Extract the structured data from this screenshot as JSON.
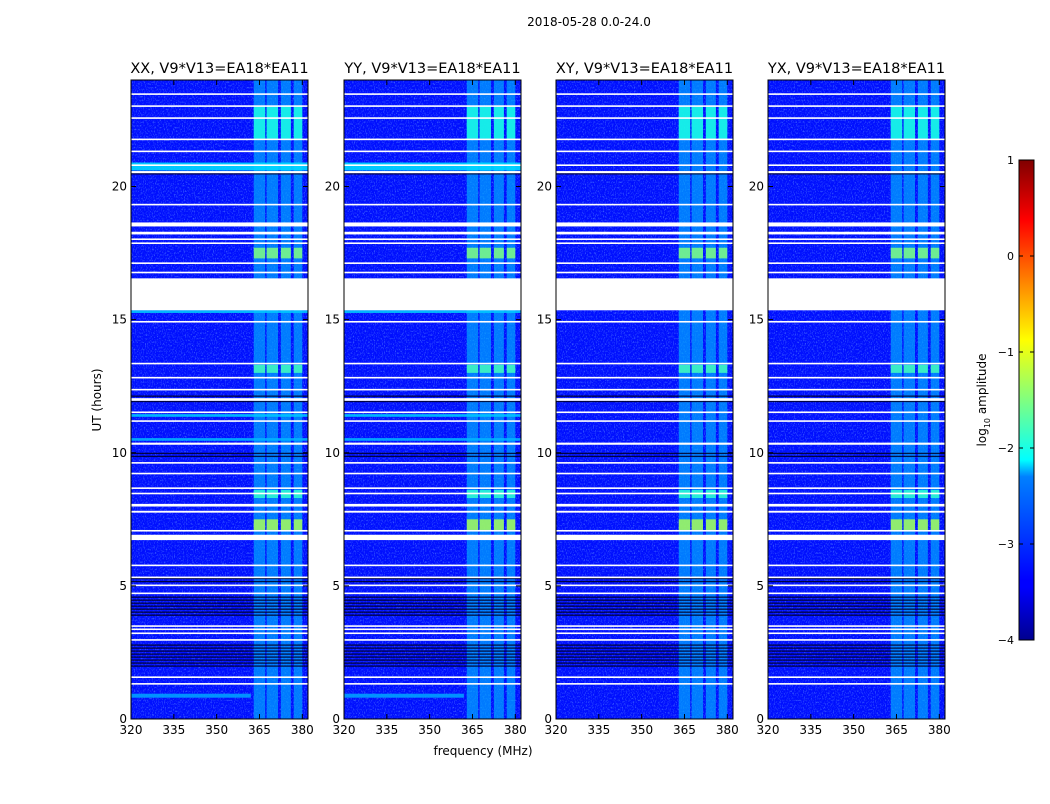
{
  "chart_data": {
    "type": "heatmap",
    "suptitle": "2018-05-28 0.0-24.0",
    "xlabel": "frequency (MHz)",
    "ylabel": "UT (hours)",
    "xlim": [
      320,
      382
    ],
    "ylim": [
      0,
      24
    ],
    "xticks": [
      320,
      335,
      350,
      365,
      380
    ],
    "yticks": [
      0,
      5,
      10,
      15,
      20
    ],
    "colormap": "jet",
    "colorbar": {
      "label": "log10 amplitude",
      "label_base": "log",
      "label_sub": "10",
      "label_rest": " amplitude",
      "range": [
        -4,
        1
      ],
      "ticks": [
        {
          "value": 1,
          "label": "1"
        },
        {
          "value": 0,
          "label": "0"
        },
        {
          "value": -1,
          "label": "−1"
        },
        {
          "value": -2,
          "label": "−2"
        },
        {
          "value": -3,
          "label": "−3"
        },
        {
          "value": -4,
          "label": "−4"
        }
      ]
    },
    "panels": [
      {
        "title": "XX, V9*V13=EA18*EA11",
        "polarization": "XX"
      },
      {
        "title": "YY, V9*V13=EA18*EA11",
        "polarization": "YY"
      },
      {
        "title": "XY, V9*V13=EA18*EA11",
        "polarization": "XY"
      },
      {
        "title": "YX, V9*V13=EA18*EA11",
        "polarization": "YX"
      }
    ],
    "background_log_amp": -3.3,
    "rfi_bands_mhz": [
      [
        363,
        367
      ],
      [
        367.5,
        371.5
      ],
      [
        372.5,
        376
      ],
      [
        377,
        380
      ]
    ],
    "flagged_ut_ranges": [
      [
        1.3,
        1.35
      ],
      [
        1.55,
        1.6
      ],
      [
        2.95,
        3.0
      ],
      [
        3.2,
        3.25
      ],
      [
        3.35,
        3.4
      ],
      [
        3.48,
        3.52
      ],
      [
        4.7,
        4.75
      ],
      [
        5.0,
        5.05
      ],
      [
        5.3,
        5.35
      ],
      [
        5.75,
        5.8
      ],
      [
        6.72,
        6.92
      ],
      [
        7.07,
        7.1
      ],
      [
        7.75,
        7.82
      ],
      [
        7.98,
        8.08
      ],
      [
        8.45,
        8.5
      ],
      [
        8.65,
        8.7
      ],
      [
        9.2,
        9.25
      ],
      [
        9.6,
        9.65
      ],
      [
        10.3,
        10.38
      ],
      [
        11.18,
        11.22
      ],
      [
        11.5,
        11.55
      ],
      [
        11.95,
        12.05
      ],
      [
        12.35,
        12.4
      ],
      [
        12.8,
        12.85
      ],
      [
        13.32,
        13.38
      ],
      [
        14.9,
        14.95
      ],
      [
        15.35,
        16.55
      ],
      [
        16.75,
        16.8
      ],
      [
        17.1,
        17.15
      ],
      [
        17.85,
        17.9
      ],
      [
        18.0,
        18.05
      ],
      [
        18.2,
        18.3
      ],
      [
        18.5,
        18.65
      ],
      [
        19.3,
        19.35
      ],
      [
        20.5,
        20.58
      ],
      [
        20.78,
        20.83
      ],
      [
        21.3,
        21.35
      ],
      [
        21.75,
        21.8
      ],
      [
        22.55,
        22.6
      ],
      [
        23.0,
        23.05
      ],
      [
        23.45,
        23.5
      ]
    ],
    "dark_ut_ranges": [
      [
        1.9,
        2.8
      ],
      [
        3.9,
        4.6
      ],
      [
        5.1,
        5.3
      ],
      [
        9.85,
        10.0
      ],
      [
        11.85,
        11.95
      ],
      [
        12.05,
        12.15
      ],
      [
        20.43,
        20.5
      ]
    ],
    "bright_features": [
      {
        "ut": [
          20.6,
          20.9
        ],
        "mhz": [
          320,
          382
        ],
        "log_amp": -2.3,
        "panels": [
          "XX",
          "YY"
        ]
      },
      {
        "ut": [
          15.25,
          15.35
        ],
        "mhz": [
          320,
          382
        ],
        "log_amp": -2.4,
        "panels": [
          "XX",
          "YY"
        ]
      },
      {
        "ut": [
          0.8,
          0.95
        ],
        "mhz": [
          320,
          362
        ],
        "log_amp": -2.6,
        "panels": [
          "XX",
          "YY"
        ]
      },
      {
        "ut": [
          11.35,
          11.45
        ],
        "mhz": [
          320,
          382
        ],
        "log_amp": -2.4,
        "panels": [
          "XX",
          "YY"
        ]
      },
      {
        "ut": [
          10.45,
          10.55
        ],
        "mhz": [
          320,
          382
        ],
        "log_amp": -2.5,
        "panels": [
          "XX",
          "YY"
        ]
      },
      {
        "ut": [
          13.0,
          13.3
        ],
        "mhz": [
          363,
          380
        ],
        "log_amp": -1.8,
        "panels": [
          "XX",
          "YY",
          "XY",
          "YX"
        ]
      },
      {
        "ut": [
          17.3,
          17.7
        ],
        "mhz": [
          363,
          380
        ],
        "log_amp": -1.5,
        "panels": [
          "XX",
          "YY",
          "XY",
          "YX"
        ]
      },
      {
        "ut": [
          7.1,
          7.5
        ],
        "mhz": [
          363,
          380
        ],
        "log_amp": -1.3,
        "panels": [
          "XX",
          "YY",
          "XY",
          "YX"
        ]
      },
      {
        "ut": [
          8.3,
          8.6
        ],
        "mhz": [
          363,
          380
        ],
        "log_amp": -1.9,
        "panels": [
          "XX",
          "YY",
          "XY",
          "YX"
        ]
      },
      {
        "ut": [
          21.8,
          23.0
        ],
        "mhz": [
          363,
          380
        ],
        "log_amp": -2.0,
        "panels": [
          "XX",
          "YY",
          "XY",
          "YX"
        ]
      }
    ]
  }
}
